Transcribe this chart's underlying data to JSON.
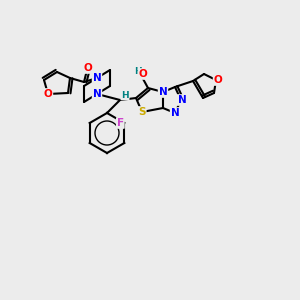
{
  "bg_color": "#ececec",
  "bond_color": "#000000",
  "atom_colors": {
    "O": "#ff0000",
    "N": "#0000ff",
    "S": "#ccaa00",
    "F": "#cc44cc",
    "H": "#008080",
    "C": "#000000"
  },
  "figsize": [
    3.0,
    3.0
  ],
  "dpi": 100
}
